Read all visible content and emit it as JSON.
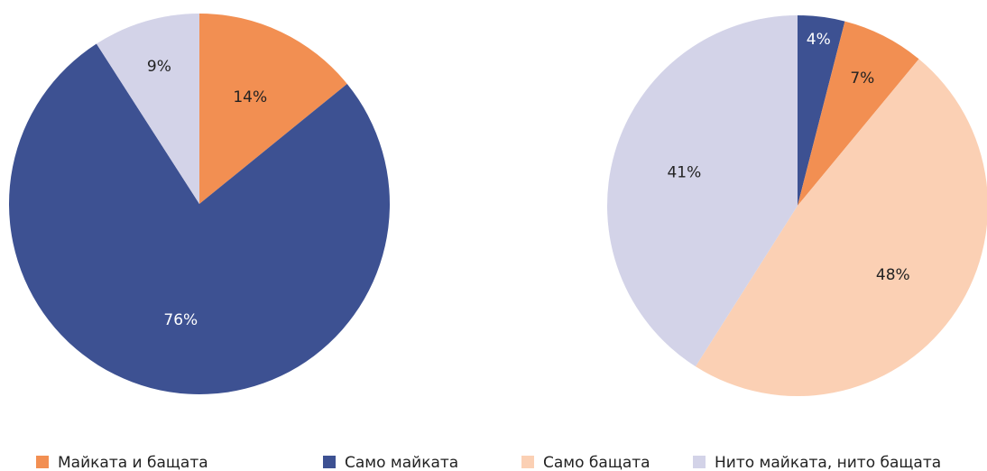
{
  "chart_data": [
    {
      "type": "pie",
      "values": [
        14,
        76,
        9
      ],
      "value_labels": [
        "14%",
        "76%",
        "9%"
      ],
      "colors": [
        "#f28f52",
        "#3d5192",
        "#d3d3e8"
      ]
    },
    {
      "type": "pie",
      "values": [
        4,
        7,
        48,
        41
      ],
      "value_labels": [
        "4%",
        "7%",
        "48%",
        "41%"
      ],
      "colors": [
        "#3d5192",
        "#f28f52",
        "#fbd0b4",
        "#d3d3e8"
      ]
    }
  ],
  "legend": [
    {
      "name": "Майката и бащата",
      "color": "#f28f52"
    },
    {
      "name": "Само майката",
      "color": "#3d5192"
    },
    {
      "name": "Само бащата",
      "color": "#fbd0b4"
    },
    {
      "name": "Нито майката, нито бащата",
      "color": "#d3d3e8"
    }
  ]
}
